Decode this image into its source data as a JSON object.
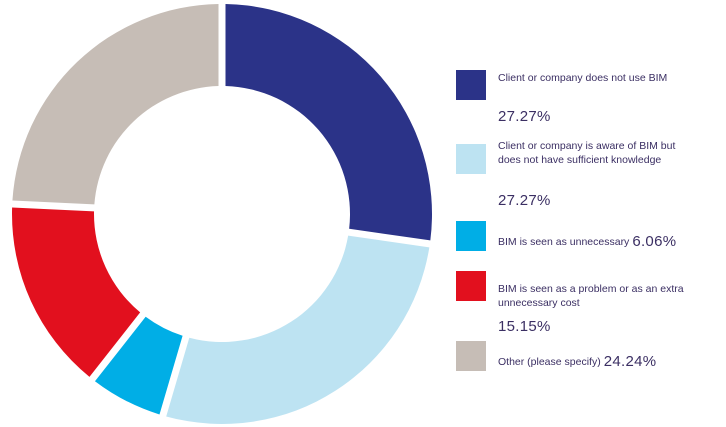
{
  "chart_data": {
    "type": "pie",
    "variant": "donut",
    "slices": [
      {
        "label": "Client or company does not use BIM",
        "value": 27.27,
        "value_label": "27.27%",
        "color": "#2b3388"
      },
      {
        "label": "Client or company is aware of BIM but does not have sufficient knowledge",
        "value": 27.27,
        "value_label": "27.27%",
        "color": "#bde3f2"
      },
      {
        "label": "BIM is seen as unnecessary",
        "value": 6.06,
        "value_label": "6.06%",
        "color": "#00aee6"
      },
      {
        "label": "BIM is seen as a problem or as an extra unnecessary cost",
        "value": 15.15,
        "value_label": "15.15%",
        "color": "#e2101e"
      },
      {
        "label": "Other (please specify)",
        "value": 24.24,
        "value_label": "24.24%",
        "color": "#c6bdb6"
      }
    ],
    "legend_position": "right"
  }
}
